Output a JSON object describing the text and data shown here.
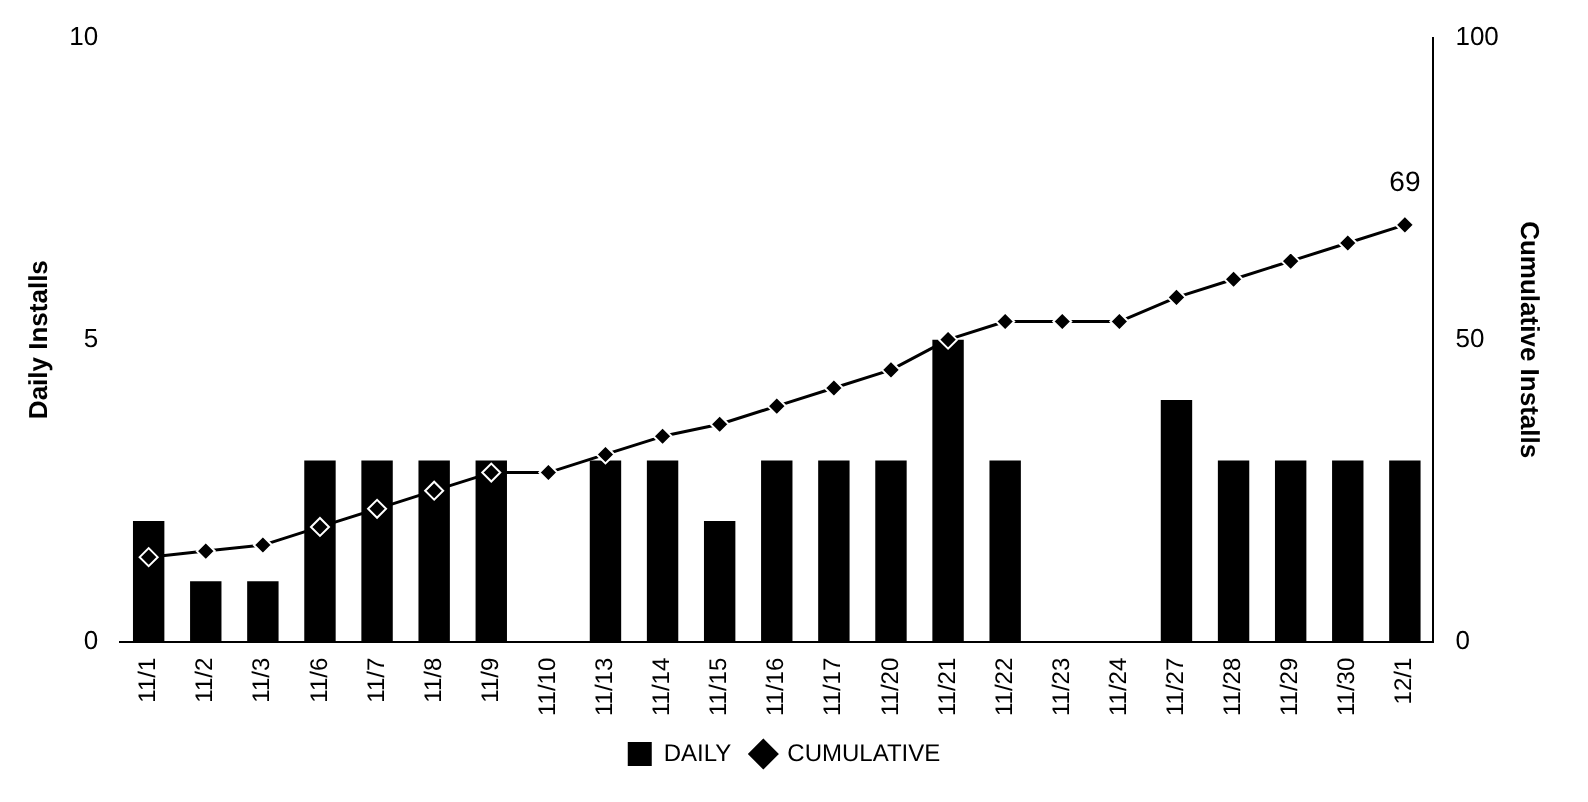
{
  "chart_data": {
    "type": "bar",
    "categories": [
      "11/1",
      "11/2",
      "11/3",
      "11/6",
      "11/7",
      "11/8",
      "11/9",
      "11/10",
      "11/13",
      "11/14",
      "11/15",
      "11/16",
      "11/17",
      "11/20",
      "11/21",
      "11/22",
      "11/23",
      "11/24",
      "11/27",
      "11/28",
      "11/29",
      "11/30",
      "12/1"
    ],
    "series": [
      {
        "name": "DAILY",
        "color": "#000000",
        "values": [
          2,
          1,
          1,
          3,
          3,
          3,
          3,
          0,
          3,
          3,
          2,
          3,
          3,
          3,
          5,
          3,
          0,
          0,
          4,
          3,
          3,
          3,
          3
        ]
      },
      {
        "name": "CUMULATIVE",
        "type": "line",
        "axis": "y2",
        "color": "#000000",
        "values": [
          14,
          15,
          16,
          19,
          22,
          25,
          28,
          28,
          31,
          34,
          36,
          39,
          42,
          45,
          50,
          53,
          53,
          53,
          57,
          60,
          63,
          66,
          69
        ],
        "value_labels": [
          null,
          null,
          null,
          null,
          null,
          null,
          null,
          null,
          null,
          null,
          null,
          null,
          null,
          null,
          null,
          null,
          null,
          null,
          null,
          null,
          null,
          null,
          "69"
        ]
      }
    ],
    "ylabel": "Daily Installs",
    "y2label": "Cumulative Installs",
    "ylim": [
      0,
      10
    ],
    "yticks": [
      0,
      5,
      10
    ],
    "y2lim": [
      0,
      100
    ],
    "y2ticks": [
      0,
      50,
      100
    ],
    "legend": "bottom",
    "marker": "diamond",
    "line_style": "solid",
    "grid": false
  }
}
